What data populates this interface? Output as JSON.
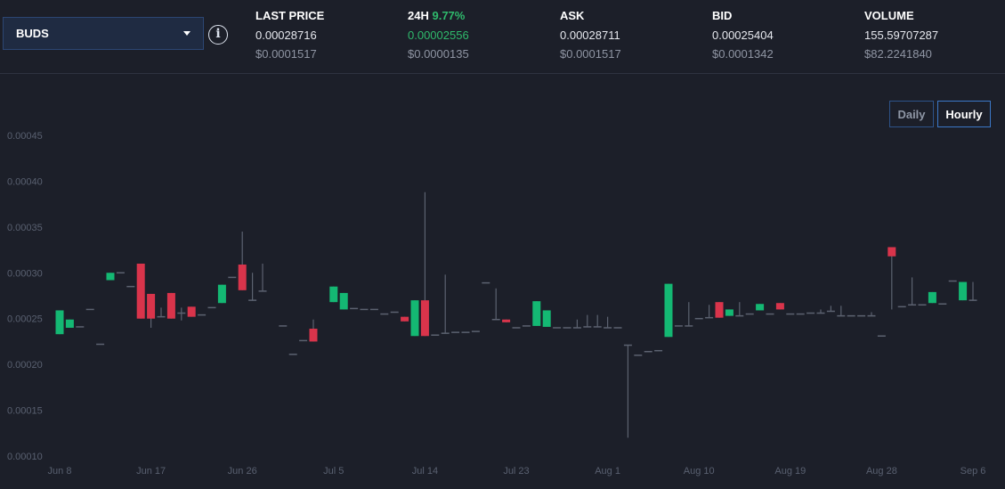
{
  "header": {
    "pair": "BUDS",
    "stats": [
      {
        "label": "LAST PRICE",
        "pct": "",
        "value": "0.00028716",
        "usd": "$0.0001517"
      },
      {
        "label": "24H",
        "pct": "9.77%",
        "value": "0.00002556",
        "usd": "$0.0000135"
      },
      {
        "label": "ASK",
        "pct": "",
        "value": "0.00028711",
        "usd": "$0.0001517"
      },
      {
        "label": "BID",
        "pct": "",
        "value": "0.00025404",
        "usd": "$0.0001342"
      },
      {
        "label": "VOLUME",
        "pct": "",
        "value": "155.59707287",
        "usd": "$82.2241840"
      }
    ]
  },
  "controls": {
    "daily_label": "Daily",
    "hourly_label": "Hourly",
    "active": "Hourly"
  },
  "colors": {
    "up": "#14b873",
    "down": "#d9344b",
    "flat": "#5c6270",
    "positive_text": "#2fba6c"
  },
  "chart_data": {
    "type": "candlestick",
    "title": "",
    "xlabel": "",
    "ylabel": "",
    "ylim": [
      0.0001,
      0.00045
    ],
    "grid": false,
    "y_ticks": [
      "0.00010",
      "0.00015",
      "0.00020",
      "0.00025",
      "0.00030",
      "0.00035",
      "0.00040",
      "0.00045"
    ],
    "x_ticks": [
      {
        "label": "Jun 8",
        "day": 0
      },
      {
        "label": "Jun 17",
        "day": 9
      },
      {
        "label": "Jun 26",
        "day": 18
      },
      {
        "label": "Jul 5",
        "day": 27
      },
      {
        "label": "Jul 14",
        "day": 36
      },
      {
        "label": "Jul 23",
        "day": 45
      },
      {
        "label": "Aug 1",
        "day": 54
      },
      {
        "label": "Aug 10",
        "day": 63
      },
      {
        "label": "Aug 19",
        "day": 72
      },
      {
        "label": "Aug 28",
        "day": 81
      },
      {
        "label": "Sep 6",
        "day": 90
      }
    ],
    "candles": [
      {
        "day": 0,
        "open": 0.000233,
        "close": 0.000259,
        "high": 0.000259,
        "low": 0.000233
      },
      {
        "day": 1,
        "open": 0.00024,
        "close": 0.000249,
        "high": 0.000249,
        "low": 0.00024
      },
      {
        "day": 2,
        "open": 0.000241,
        "close": 0.000241,
        "high": 0.000241,
        "low": 0.000241
      },
      {
        "day": 3,
        "open": 0.00026,
        "close": 0.00026,
        "high": 0.00026,
        "low": 0.00026
      },
      {
        "day": 4,
        "open": 0.000222,
        "close": 0.000222,
        "high": 0.000222,
        "low": 0.000222
      },
      {
        "day": 5,
        "open": 0.000292,
        "close": 0.0003,
        "high": 0.0003,
        "low": 0.000292
      },
      {
        "day": 6,
        "open": 0.0003,
        "close": 0.0003,
        "high": 0.0003,
        "low": 0.0003
      },
      {
        "day": 7,
        "open": 0.000285,
        "close": 0.000285,
        "high": 0.000285,
        "low": 0.000285
      },
      {
        "day": 8,
        "open": 0.00031,
        "close": 0.00025,
        "high": 0.00031,
        "low": 0.00025
      },
      {
        "day": 9,
        "open": 0.000277,
        "close": 0.00025,
        "high": 0.000277,
        "low": 0.00024
      },
      {
        "day": 10,
        "open": 0.000252,
        "close": 0.000252,
        "high": 0.000262,
        "low": 0.000252
      },
      {
        "day": 11,
        "open": 0.000278,
        "close": 0.00025,
        "high": 0.000278,
        "low": 0.00025
      },
      {
        "day": 12,
        "open": 0.000256,
        "close": 0.000256,
        "high": 0.000262,
        "low": 0.000248
      },
      {
        "day": 13,
        "open": 0.000263,
        "close": 0.000252,
        "high": 0.000263,
        "low": 0.000252
      },
      {
        "day": 14,
        "open": 0.000254,
        "close": 0.000254,
        "high": 0.000254,
        "low": 0.000254
      },
      {
        "day": 15,
        "open": 0.000262,
        "close": 0.000262,
        "high": 0.000262,
        "low": 0.000262
      },
      {
        "day": 16,
        "open": 0.000267,
        "close": 0.000287,
        "high": 0.000287,
        "low": 0.000267
      },
      {
        "day": 17,
        "open": 0.000295,
        "close": 0.000295,
        "high": 0.000295,
        "low": 0.000295
      },
      {
        "day": 18,
        "open": 0.000309,
        "close": 0.000281,
        "high": 0.000345,
        "low": 0.000281
      },
      {
        "day": 19,
        "open": 0.00027,
        "close": 0.00027,
        "high": 0.0003,
        "low": 0.00027
      },
      {
        "day": 20,
        "open": 0.00028,
        "close": 0.00028,
        "high": 0.00031,
        "low": 0.00028
      },
      {
        "day": 22,
        "open": 0.000242,
        "close": 0.000242,
        "high": 0.000242,
        "low": 0.000242
      },
      {
        "day": 23,
        "open": 0.000211,
        "close": 0.000211,
        "high": 0.000211,
        "low": 0.000211
      },
      {
        "day": 24,
        "open": 0.000226,
        "close": 0.000226,
        "high": 0.000226,
        "low": 0.000226
      },
      {
        "day": 25,
        "open": 0.000239,
        "close": 0.000225,
        "high": 0.000249,
        "low": 0.000225
      },
      {
        "day": 27,
        "open": 0.000268,
        "close": 0.000285,
        "high": 0.000285,
        "low": 0.000268
      },
      {
        "day": 28,
        "open": 0.00026,
        "close": 0.000278,
        "high": 0.000278,
        "low": 0.00026
      },
      {
        "day": 29,
        "open": 0.000261,
        "close": 0.000261,
        "high": 0.000261,
        "low": 0.000261
      },
      {
        "day": 30,
        "open": 0.00026,
        "close": 0.00026,
        "high": 0.00026,
        "low": 0.00026
      },
      {
        "day": 31,
        "open": 0.00026,
        "close": 0.00026,
        "high": 0.00026,
        "low": 0.00026
      },
      {
        "day": 32,
        "open": 0.000255,
        "close": 0.000255,
        "high": 0.000255,
        "low": 0.000255
      },
      {
        "day": 33,
        "open": 0.000257,
        "close": 0.000257,
        "high": 0.000257,
        "low": 0.000257
      },
      {
        "day": 34,
        "open": 0.000252,
        "close": 0.000247,
        "high": 0.000252,
        "low": 0.000247
      },
      {
        "day": 35,
        "open": 0.000231,
        "close": 0.00027,
        "high": 0.00027,
        "low": 0.000231
      },
      {
        "day": 36,
        "open": 0.00027,
        "close": 0.000231,
        "high": 0.000388,
        "low": 0.000231
      },
      {
        "day": 37,
        "open": 0.000232,
        "close": 0.000232,
        "high": 0.000232,
        "low": 0.000232
      },
      {
        "day": 38,
        "open": 0.000234,
        "close": 0.000234,
        "high": 0.000298,
        "low": 0.000234
      },
      {
        "day": 39,
        "open": 0.000235,
        "close": 0.000235,
        "high": 0.000235,
        "low": 0.000235
      },
      {
        "day": 40,
        "open": 0.000235,
        "close": 0.000235,
        "high": 0.000235,
        "low": 0.000235
      },
      {
        "day": 41,
        "open": 0.000236,
        "close": 0.000236,
        "high": 0.000236,
        "low": 0.000236
      },
      {
        "day": 42,
        "open": 0.000289,
        "close": 0.000289,
        "high": 0.000289,
        "low": 0.000289
      },
      {
        "day": 43,
        "open": 0.000249,
        "close": 0.000249,
        "high": 0.000283,
        "low": 0.000249
      },
      {
        "day": 44,
        "open": 0.000249,
        "close": 0.000246,
        "high": 0.000249,
        "low": 0.000246
      },
      {
        "day": 45,
        "open": 0.00024,
        "close": 0.00024,
        "high": 0.00024,
        "low": 0.00024
      },
      {
        "day": 46,
        "open": 0.000242,
        "close": 0.000242,
        "high": 0.000242,
        "low": 0.000242
      },
      {
        "day": 47,
        "open": 0.000242,
        "close": 0.000269,
        "high": 0.000269,
        "low": 0.000242
      },
      {
        "day": 48,
        "open": 0.000241,
        "close": 0.000259,
        "high": 0.000259,
        "low": 0.000241
      },
      {
        "day": 49,
        "open": 0.00024,
        "close": 0.00024,
        "high": 0.00024,
        "low": 0.00024
      },
      {
        "day": 50,
        "open": 0.00024,
        "close": 0.00024,
        "high": 0.00024,
        "low": 0.00024
      },
      {
        "day": 51,
        "open": 0.00024,
        "close": 0.00024,
        "high": 0.000249,
        "low": 0.00024
      },
      {
        "day": 52,
        "open": 0.000241,
        "close": 0.000241,
        "high": 0.000254,
        "low": 0.000241
      },
      {
        "day": 53,
        "open": 0.000241,
        "close": 0.000241,
        "high": 0.000254,
        "low": 0.000241
      },
      {
        "day": 54,
        "open": 0.00024,
        "close": 0.00024,
        "high": 0.000252,
        "low": 0.00024
      },
      {
        "day": 55,
        "open": 0.00024,
        "close": 0.00024,
        "high": 0.00024,
        "low": 0.00024
      },
      {
        "day": 56,
        "open": 0.000221,
        "close": 0.000221,
        "high": 0.000221,
        "low": 0.00012
      },
      {
        "day": 57,
        "open": 0.00021,
        "close": 0.00021,
        "high": 0.00021,
        "low": 0.00021
      },
      {
        "day": 58,
        "open": 0.000214,
        "close": 0.000214,
        "high": 0.000214,
        "low": 0.000214
      },
      {
        "day": 59,
        "open": 0.000215,
        "close": 0.000215,
        "high": 0.000215,
        "low": 0.000215
      },
      {
        "day": 60,
        "open": 0.00023,
        "close": 0.000288,
        "high": 0.000288,
        "low": 0.00023
      },
      {
        "day": 61,
        "open": 0.000242,
        "close": 0.000242,
        "high": 0.000242,
        "low": 0.000242
      },
      {
        "day": 62,
        "open": 0.000242,
        "close": 0.000242,
        "high": 0.000268,
        "low": 0.000242
      },
      {
        "day": 63,
        "open": 0.00025,
        "close": 0.00025,
        "high": 0.00025,
        "low": 0.00025
      },
      {
        "day": 64,
        "open": 0.000251,
        "close": 0.000251,
        "high": 0.000265,
        "low": 0.000251
      },
      {
        "day": 65,
        "open": 0.000268,
        "close": 0.000251,
        "high": 0.000268,
        "low": 0.000251
      },
      {
        "day": 66,
        "open": 0.000253,
        "close": 0.00026,
        "high": 0.00026,
        "low": 0.000253
      },
      {
        "day": 67,
        "open": 0.000253,
        "close": 0.000253,
        "high": 0.000268,
        "low": 0.000253
      },
      {
        "day": 68,
        "open": 0.000255,
        "close": 0.000255,
        "high": 0.000255,
        "low": 0.000255
      },
      {
        "day": 69,
        "open": 0.000259,
        "close": 0.000266,
        "high": 0.000266,
        "low": 0.000259
      },
      {
        "day": 70,
        "open": 0.000255,
        "close": 0.000255,
        "high": 0.000255,
        "low": 0.000255
      },
      {
        "day": 71,
        "open": 0.000267,
        "close": 0.00026,
        "high": 0.000267,
        "low": 0.00026
      },
      {
        "day": 72,
        "open": 0.000255,
        "close": 0.000255,
        "high": 0.000255,
        "low": 0.000255
      },
      {
        "day": 73,
        "open": 0.000255,
        "close": 0.000255,
        "high": 0.000255,
        "low": 0.000255
      },
      {
        "day": 74,
        "open": 0.000256,
        "close": 0.000256,
        "high": 0.000256,
        "low": 0.000256
      },
      {
        "day": 75,
        "open": 0.000256,
        "close": 0.000256,
        "high": 0.00026,
        "low": 0.000256
      },
      {
        "day": 76,
        "open": 0.000258,
        "close": 0.000258,
        "high": 0.000264,
        "low": 0.000258
      },
      {
        "day": 77,
        "open": 0.000253,
        "close": 0.000253,
        "high": 0.000264,
        "low": 0.000253
      },
      {
        "day": 78,
        "open": 0.000253,
        "close": 0.000253,
        "high": 0.000253,
        "low": 0.000253
      },
      {
        "day": 79,
        "open": 0.000253,
        "close": 0.000253,
        "high": 0.000253,
        "low": 0.000253
      },
      {
        "day": 80,
        "open": 0.000253,
        "close": 0.000253,
        "high": 0.000257,
        "low": 0.000253
      },
      {
        "day": 81,
        "open": 0.000231,
        "close": 0.000231,
        "high": 0.000231,
        "low": 0.000231
      },
      {
        "day": 82,
        "open": 0.000328,
        "close": 0.000318,
        "high": 0.000328,
        "low": 0.00026
      },
      {
        "day": 83,
        "open": 0.000263,
        "close": 0.000263,
        "high": 0.000263,
        "low": 0.000263
      },
      {
        "day": 84,
        "open": 0.000265,
        "close": 0.000265,
        "high": 0.000295,
        "low": 0.000265
      },
      {
        "day": 85,
        "open": 0.000265,
        "close": 0.000265,
        "high": 0.000265,
        "low": 0.000265
      },
      {
        "day": 86,
        "open": 0.000267,
        "close": 0.000279,
        "high": 0.000279,
        "low": 0.000267
      },
      {
        "day": 87,
        "open": 0.000266,
        "close": 0.000266,
        "high": 0.000266,
        "low": 0.000266
      },
      {
        "day": 88,
        "open": 0.000291,
        "close": 0.000291,
        "high": 0.000291,
        "low": 0.000291
      },
      {
        "day": 89,
        "open": 0.00027,
        "close": 0.00029,
        "high": 0.00029,
        "low": 0.00027
      },
      {
        "day": 90,
        "open": 0.00027,
        "close": 0.00027,
        "high": 0.00029,
        "low": 0.00027
      }
    ]
  }
}
